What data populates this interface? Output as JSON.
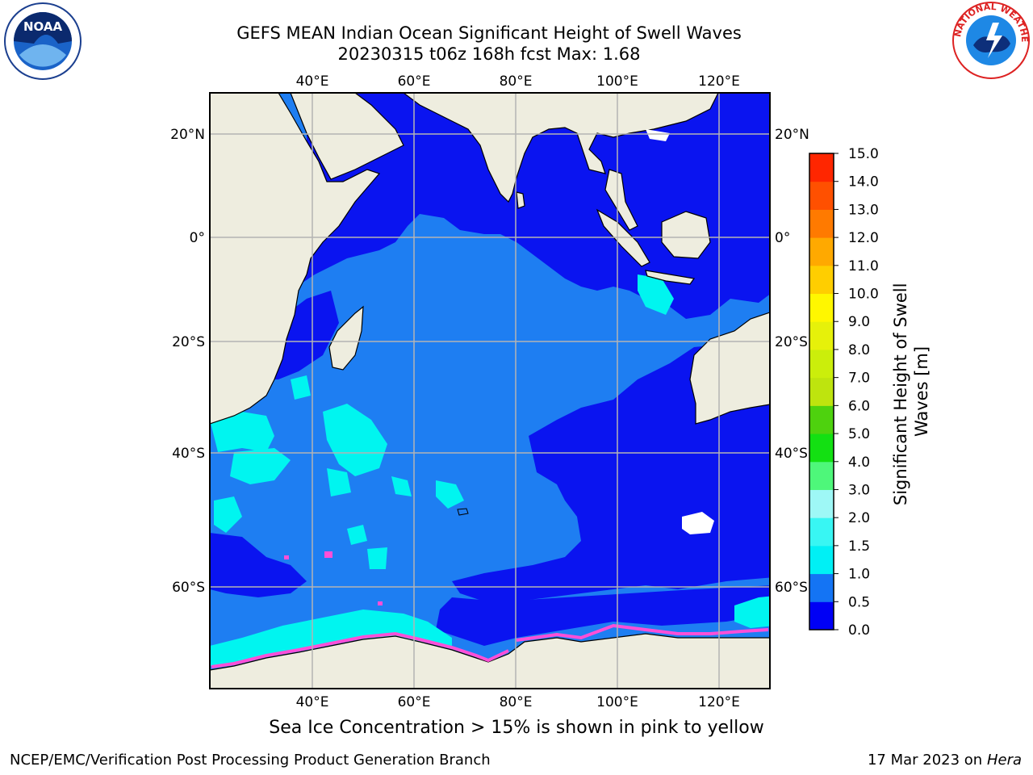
{
  "title_line1": "GEFS MEAN Indian Ocean Significant Height of Swell Waves",
  "title_line2": "20230315 t06z 168h fcst   Max: 1.68",
  "map": {
    "lon_ticks": [
      "40°E",
      "60°E",
      "80°E",
      "100°E",
      "120°E"
    ],
    "lat_ticks_left": [
      "20°N",
      "0°",
      "20°S",
      "40°S",
      "60°S"
    ],
    "lat_ticks_right": [
      "20°N",
      "0°",
      "20°S",
      "40°S",
      "60°S"
    ],
    "colors": {
      "land": "#eeeddf",
      "ocean_low": "#0a14f0",
      "ocean_mid": "#1e7ef2",
      "ocean_high": "#00f5f0",
      "ice": "#ff4fd8",
      "grid": "#b4b4b4"
    }
  },
  "colorbar": {
    "label": "Significant Height of Swell Waves [m]",
    "ticks": [
      "0.0",
      "0.5",
      "1.0",
      "1.5",
      "2.0",
      "3.0",
      "4.0",
      "5.0",
      "6.0",
      "7.0",
      "8.0",
      "9.0",
      "10.0",
      "11.0",
      "12.0",
      "13.0",
      "14.0",
      "15.0"
    ],
    "colors": [
      "#0000f5",
      "#1474f4",
      "#00f0f5",
      "#38f6f3",
      "#9ef8f6",
      "#4ef77a",
      "#13e012",
      "#4ed20e",
      "#bee40e",
      "#cbee0b",
      "#e6f10a",
      "#fff700",
      "#ffce00",
      "#ffa900",
      "#ff7a00",
      "#ff5000",
      "#ff2600",
      "#ff0000"
    ]
  },
  "note": "Sea Ice Concentration > 15% is shown in pink to yellow",
  "footer_left": "NCEP/EMC/Verification Post Processing Product Generation Branch",
  "footer_right_date": "17 Mar 2023 on",
  "footer_right_machine": "Hera",
  "logos": {
    "noaa_text": "NOAA",
    "nws_text": "NATIONAL WEATHER SERVICE"
  }
}
